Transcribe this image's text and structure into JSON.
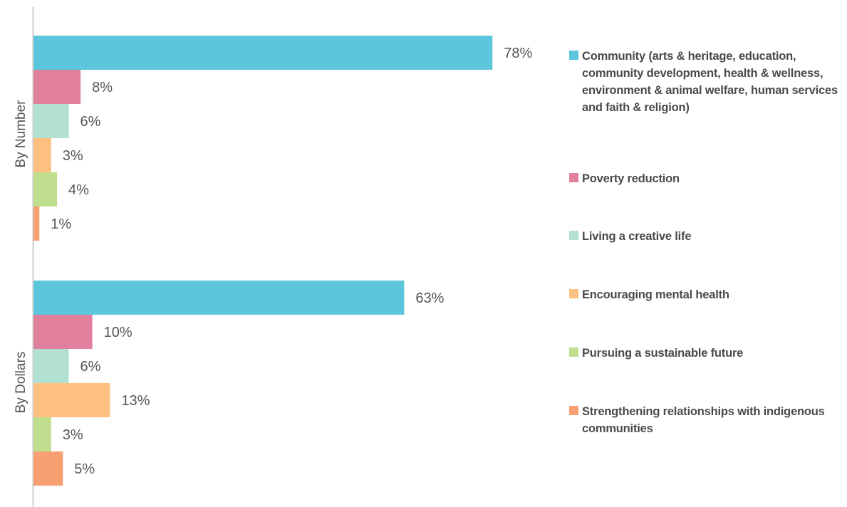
{
  "chart_data": {
    "type": "bar",
    "orientation": "horizontal",
    "groups": [
      "By Number",
      "By Dollars"
    ],
    "series": [
      {
        "name": "Community (arts & heritage, education, community development, health & wellness, environment & animal welfare, human services and faith & religion)",
        "color": "#5bc6dc",
        "values": [
          78,
          63
        ]
      },
      {
        "name": "Poverty reduction",
        "color": "#e0809c",
        "values": [
          8,
          10
        ]
      },
      {
        "name": "Living a creative life",
        "color": "#b2e0d2",
        "values": [
          6,
          6
        ]
      },
      {
        "name": "Encouraging mental health",
        "color": "#fdc07e",
        "values": [
          3,
          13
        ]
      },
      {
        "name": "Pursuing a sustainable future",
        "color": "#bfde8e",
        "values": [
          4,
          3
        ]
      },
      {
        "name": "Strengthening relationships with indigenous communities",
        "color": "#f7a173",
        "values": [
          1,
          5
        ]
      }
    ],
    "labels": [
      [
        "78%",
        "8%",
        "6%",
        "3%",
        "4%",
        "1%"
      ],
      [
        "63%",
        "10%",
        "6%",
        "13%",
        "3%",
        "5%"
      ]
    ],
    "legend_position": "right",
    "grid": false
  }
}
